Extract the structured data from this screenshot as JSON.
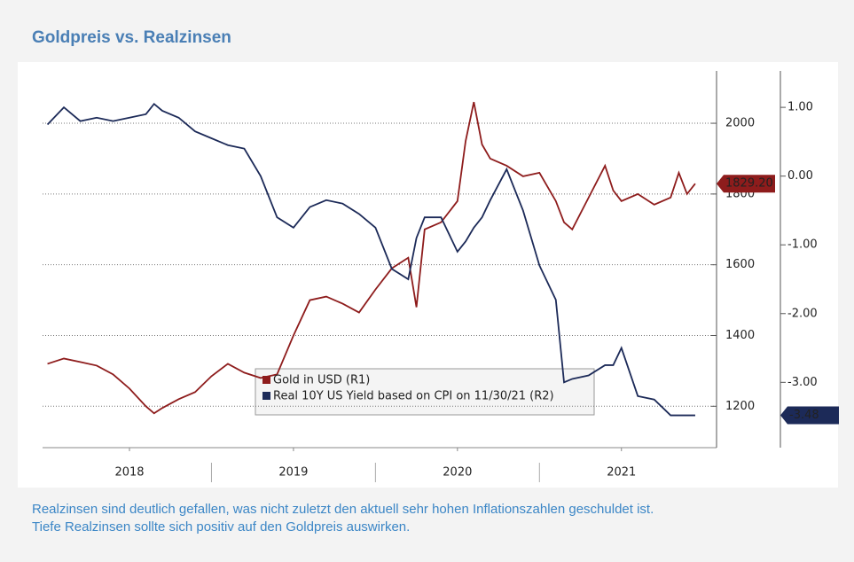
{
  "chart_data": {
    "type": "line",
    "title": "Goldpreis vs. Realzinsen",
    "caption": [
      "Realzinsen sind deutlich gefallen, was nicht zuletzt den aktuell sehr hohen Inflationszahlen geschuldet ist.",
      "Tiefe Realzinsen sollte sich positiv auf den Goldpreis auswirken."
    ],
    "x": [
      2018.0,
      2018.1,
      2018.2,
      2018.3,
      2018.4,
      2018.5,
      2018.6,
      2018.65,
      2018.7,
      2018.8,
      2018.9,
      2019.0,
      2019.1,
      2019.2,
      2019.3,
      2019.4,
      2019.5,
      2019.6,
      2019.7,
      2019.8,
      2019.9,
      2020.0,
      2020.1,
      2020.2,
      2020.25,
      2020.3,
      2020.4,
      2020.5,
      2020.55,
      2020.6,
      2020.65,
      2020.7,
      2020.8,
      2020.9,
      2021.0,
      2021.1,
      2021.15,
      2021.2,
      2021.3,
      2021.4,
      2021.45,
      2021.5,
      2021.6,
      2021.7,
      2021.8,
      2021.85,
      2021.9,
      2021.95
    ],
    "series": [
      {
        "name": "Gold in USD (R1)",
        "color": "#8e1c1c",
        "end_label": "1829.20",
        "values": [
          1320,
          1335,
          1325,
          1315,
          1290,
          1250,
          1200,
          1180,
          1195,
          1220,
          1240,
          1285,
          1320,
          1295,
          1280,
          1290,
          1400,
          1500,
          1510,
          1490,
          1465,
          1530,
          1590,
          1620,
          1480,
          1700,
          1720,
          1780,
          1950,
          2060,
          1940,
          1900,
          1880,
          1850,
          1860,
          1780,
          1720,
          1700,
          1790,
          1880,
          1810,
          1780,
          1800,
          1770,
          1790,
          1860,
          1800,
          1829.2
        ]
      },
      {
        "name": "Real 10Y US Yield based on CPI on 11/30/21 (R2)",
        "color": "#1c2a58",
        "axis": "y2",
        "end_label": "-3.48",
        "values": [
          0.75,
          1.0,
          0.8,
          0.85,
          0.8,
          0.85,
          0.9,
          1.05,
          0.95,
          0.85,
          0.65,
          0.55,
          0.45,
          0.4,
          0.0,
          -0.6,
          -0.75,
          -0.45,
          -0.35,
          -0.4,
          -0.55,
          -0.75,
          -1.35,
          -1.5,
          -0.9,
          -0.6,
          -0.6,
          -1.1,
          -0.95,
          -0.75,
          -0.6,
          -0.35,
          0.1,
          -0.5,
          -1.3,
          -1.8,
          -3.0,
          -2.95,
          -2.9,
          -2.75,
          -2.75,
          -2.5,
          -3.2,
          -3.25,
          -3.48,
          -3.48,
          -3.48,
          -3.48
        ]
      }
    ],
    "xlim": [
      2017.97,
      2022.08
    ],
    "xticks": [
      {
        "value": 2018.5,
        "label": "2018"
      },
      {
        "value": 2019.5,
        "label": "2019"
      },
      {
        "value": 2020.5,
        "label": "2020"
      },
      {
        "value": 2021.5,
        "label": "2021"
      }
    ],
    "ylim": [
      1083,
      2148
    ],
    "yticks": [
      1200,
      1400,
      1600,
      1800,
      2000
    ],
    "y2lim": [
      -3.95,
      1.53
    ],
    "y2ticks": [
      {
        "value": -3,
        "label": "-3.00"
      },
      {
        "value": -2,
        "label": "-2.00"
      },
      {
        "value": -1,
        "label": "-1.00"
      },
      {
        "value": 0,
        "label": "0.00"
      },
      {
        "value": 1,
        "label": "1.00"
      }
    ],
    "grid": true
  }
}
